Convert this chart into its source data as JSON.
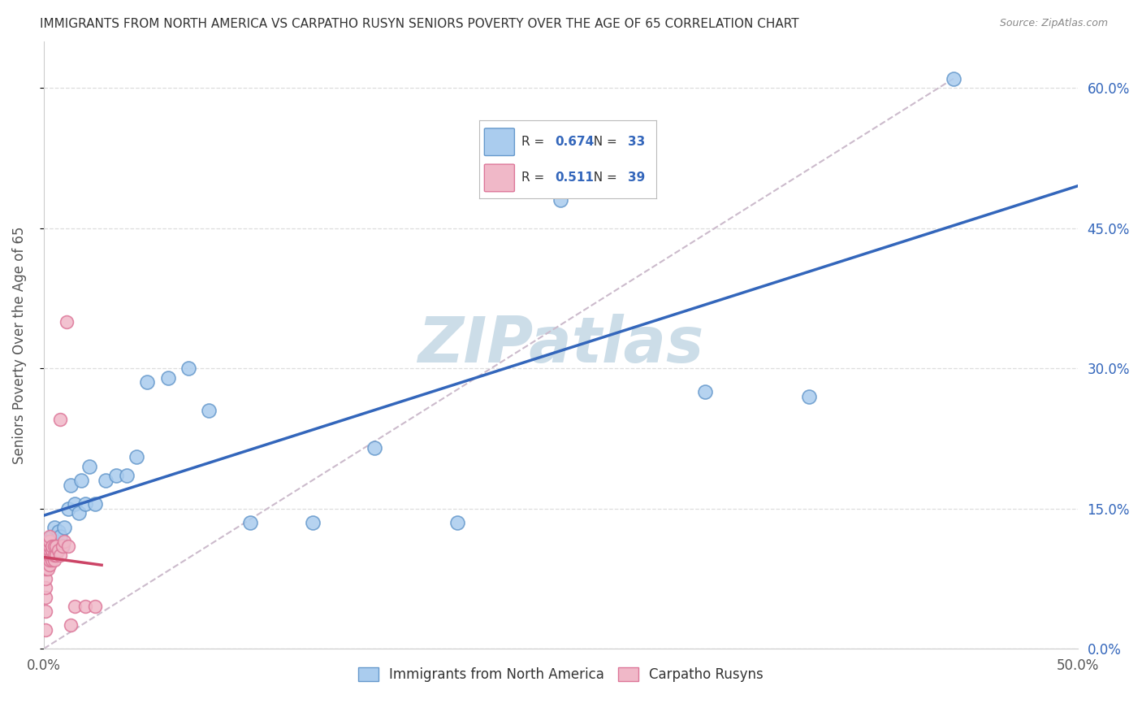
{
  "title": "IMMIGRANTS FROM NORTH AMERICA VS CARPATHO RUSYN SENIORS POVERTY OVER THE AGE OF 65 CORRELATION CHART",
  "source": "Source: ZipAtlas.com",
  "ylabel": "Seniors Poverty Over the Age of 65",
  "xlabel_blue": "Immigrants from North America",
  "xlabel_pink": "Carpatho Rusyns",
  "xlim": [
    0,
    0.5
  ],
  "ylim": [
    0,
    0.65
  ],
  "xtick_positions": [
    0.0,
    0.5
  ],
  "xtick_labels": [
    "0.0%",
    "50.0%"
  ],
  "ytick_labels_right": [
    "0.0%",
    "15.0%",
    "30.0%",
    "45.0%",
    "60.0%"
  ],
  "yticks_right": [
    0.0,
    0.15,
    0.3,
    0.45,
    0.6
  ],
  "blue_R": "0.674",
  "blue_N": "33",
  "pink_R": "0.511",
  "pink_N": "39",
  "blue_color": "#aaccee",
  "blue_edge_color": "#6699cc",
  "pink_color": "#f0b8c8",
  "pink_edge_color": "#dd7799",
  "blue_line_color": "#3366bb",
  "pink_line_color": "#cc4466",
  "dashed_line_color": "#ccbbcc",
  "watermark": "ZIPatlas",
  "watermark_color": "#ccdde8",
  "blue_scatter_x": [
    0.002,
    0.003,
    0.004,
    0.005,
    0.006,
    0.007,
    0.008,
    0.009,
    0.01,
    0.012,
    0.013,
    0.015,
    0.017,
    0.018,
    0.02,
    0.022,
    0.025,
    0.03,
    0.035,
    0.04,
    0.045,
    0.05,
    0.06,
    0.07,
    0.08,
    0.1,
    0.13,
    0.16,
    0.2,
    0.25,
    0.32,
    0.37,
    0.44
  ],
  "blue_scatter_y": [
    0.115,
    0.105,
    0.12,
    0.13,
    0.115,
    0.125,
    0.12,
    0.11,
    0.13,
    0.15,
    0.175,
    0.155,
    0.145,
    0.18,
    0.155,
    0.195,
    0.155,
    0.18,
    0.185,
    0.185,
    0.205,
    0.285,
    0.29,
    0.3,
    0.255,
    0.135,
    0.135,
    0.215,
    0.135,
    0.48,
    0.275,
    0.27,
    0.61
  ],
  "pink_scatter_x": [
    0.001,
    0.001,
    0.001,
    0.001,
    0.001,
    0.001,
    0.001,
    0.002,
    0.002,
    0.002,
    0.002,
    0.002,
    0.003,
    0.003,
    0.003,
    0.003,
    0.003,
    0.003,
    0.003,
    0.003,
    0.004,
    0.004,
    0.004,
    0.004,
    0.005,
    0.005,
    0.005,
    0.006,
    0.006,
    0.007,
    0.008,
    0.009,
    0.01,
    0.011,
    0.012,
    0.013,
    0.015,
    0.02,
    0.025
  ],
  "pink_scatter_y": [
    0.02,
    0.04,
    0.055,
    0.065,
    0.075,
    0.085,
    0.095,
    0.085,
    0.095,
    0.1,
    0.105,
    0.11,
    0.09,
    0.095,
    0.1,
    0.105,
    0.11,
    0.115,
    0.115,
    0.12,
    0.095,
    0.1,
    0.105,
    0.11,
    0.095,
    0.1,
    0.11,
    0.1,
    0.11,
    0.105,
    0.1,
    0.11,
    0.115,
    0.35,
    0.11,
    0.025,
    0.045,
    0.045,
    0.045
  ],
  "pink_isolated_x": [
    0.008
  ],
  "pink_isolated_y": [
    0.245
  ],
  "grid_color": "#dddddd",
  "grid_linestyle": "--",
  "background_color": "#ffffff",
  "title_color": "#333333",
  "axis_label_color": "#555555",
  "right_axis_color": "#3366bb",
  "legend_text_color": "#333333",
  "legend_val_color": "#3366bb"
}
